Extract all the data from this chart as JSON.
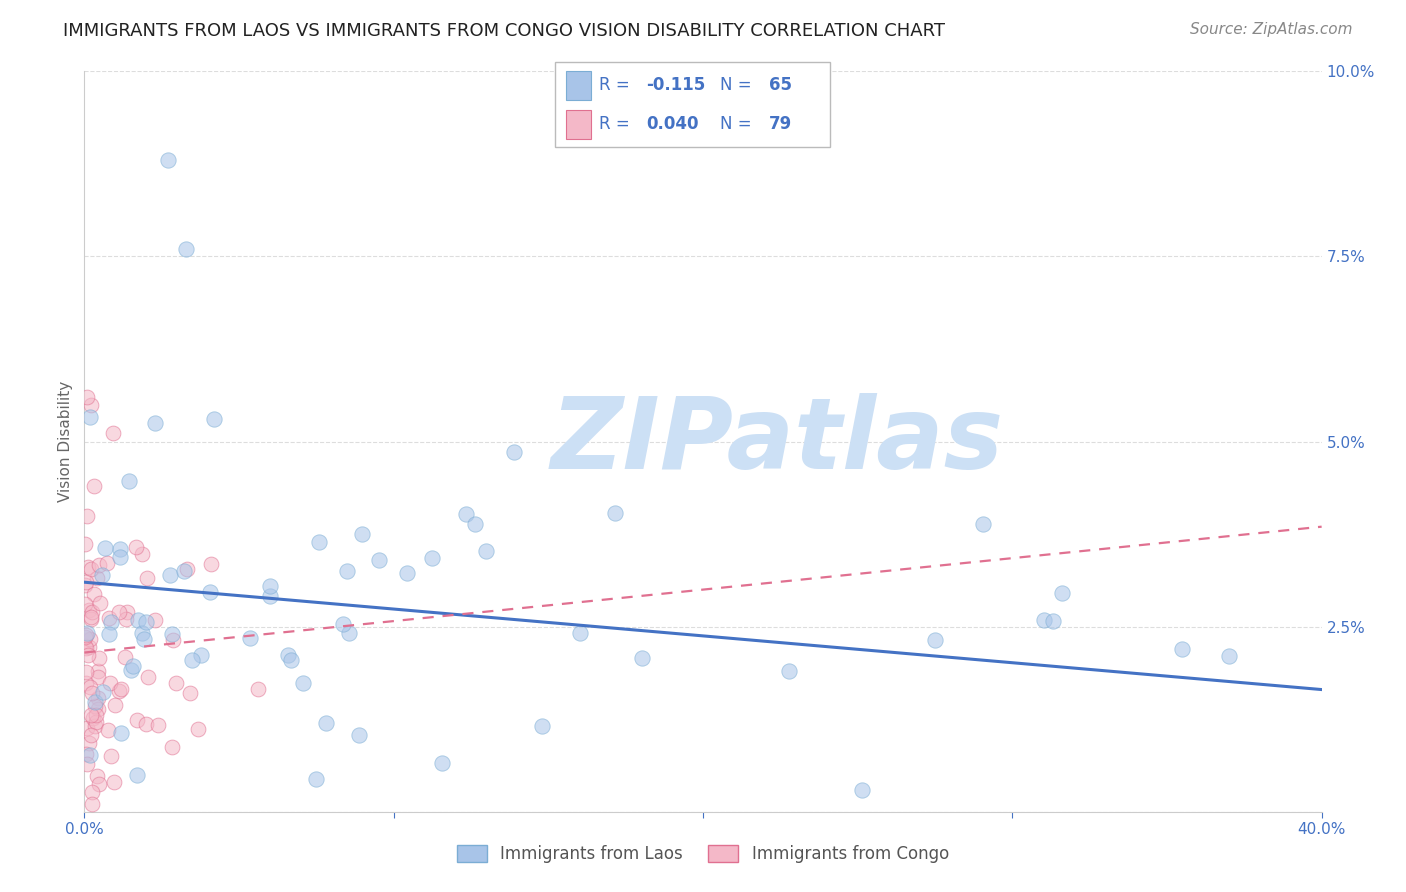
{
  "title": "IMMIGRANTS FROM LAOS VS IMMIGRANTS FROM CONGO VISION DISABILITY CORRELATION CHART",
  "source": "Source: ZipAtlas.com",
  "ylabel": "Vision Disability",
  "yticks": [
    0.0,
    0.025,
    0.05,
    0.075,
    0.1
  ],
  "ytick_labels": [
    "",
    "2.5%",
    "5.0%",
    "7.5%",
    "10.0%"
  ],
  "xlim": [
    0.0,
    0.4
  ],
  "ylim": [
    0.0,
    0.1
  ],
  "laos_color": "#a8c4e8",
  "laos_edge": "#7badd4",
  "congo_color": "#f4b8c8",
  "congo_edge": "#e07090",
  "trendline_laos_color": "#4472c4",
  "trendline_congo_color": "#e07090",
  "trendline_laos_y0": 0.031,
  "trendline_laos_y1": 0.0165,
  "trendline_congo_y0": 0.0215,
  "trendline_congo_y1": 0.0385,
  "watermark_text": "ZIPatlas",
  "watermark_color": "#cce0f5",
  "background_color": "#ffffff",
  "grid_color": "#dddddd",
  "title_fontsize": 13,
  "axis_label_fontsize": 11,
  "tick_fontsize": 11,
  "source_fontsize": 11,
  "marker_size": 9,
  "marker_alpha": 0.55,
  "legend_blue": "#4472c4",
  "legend_text_color": "#4472c4"
}
